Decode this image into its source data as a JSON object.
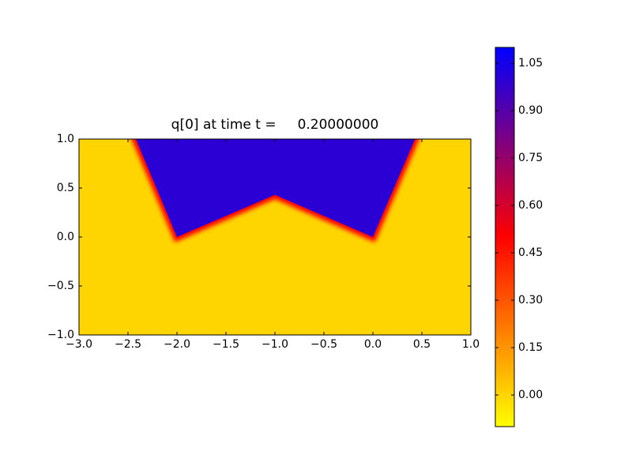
{
  "chart_data": {
    "type": "heatmap",
    "title": "q[0] at time t =     0.20000000",
    "xlim": [
      -3.0,
      1.0
    ],
    "ylim": [
      -1.0,
      1.0
    ],
    "xticks": [
      {
        "value": -3.0,
        "label": "−3.0"
      },
      {
        "value": -2.5,
        "label": "−2.5"
      },
      {
        "value": -2.0,
        "label": "−2.0"
      },
      {
        "value": -1.5,
        "label": "−1.5"
      },
      {
        "value": -1.0,
        "label": "−1.0"
      },
      {
        "value": -0.5,
        "label": "−0.5"
      },
      {
        "value": 0.0,
        "label": "0.0"
      },
      {
        "value": 0.5,
        "label": "0.5"
      },
      {
        "value": 1.0,
        "label": "1.0"
      }
    ],
    "yticks": [
      {
        "value": -1.0,
        "label": "−1.0"
      },
      {
        "value": -0.5,
        "label": "−0.5"
      },
      {
        "value": 0.0,
        "label": "0.0"
      },
      {
        "value": 0.5,
        "label": "0.5"
      },
      {
        "value": 1.0,
        "label": "1.0"
      }
    ],
    "background_value": 0.0,
    "regions": [
      {
        "value": 1.0,
        "x": [
          -2.42,
          0.43,
          0.0,
          -1.0,
          -2.0
        ],
        "y": [
          1.0,
          1.0,
          0.0,
          0.43,
          0.0
        ]
      }
    ],
    "clim": [
      -0.1,
      1.1
    ],
    "colormap": [
      {
        "value": -0.1,
        "color": "#ffff00"
      },
      {
        "value": 0.5,
        "color": "#ff0000"
      },
      {
        "value": 1.1,
        "color": "#0000ff"
      }
    ],
    "cticks": [
      {
        "value": 0.0,
        "label": "0.00"
      },
      {
        "value": 0.15,
        "label": "0.15"
      },
      {
        "value": 0.3,
        "label": "0.30"
      },
      {
        "value": 0.45,
        "label": "0.45"
      },
      {
        "value": 0.6,
        "label": "0.60"
      },
      {
        "value": 0.75,
        "label": "0.75"
      },
      {
        "value": 0.9,
        "label": "0.90"
      },
      {
        "value": 1.05,
        "label": "1.05"
      }
    ]
  }
}
